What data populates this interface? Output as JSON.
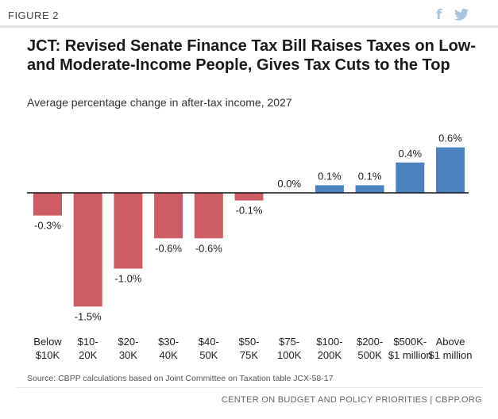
{
  "figure_label": "FIGURE 2",
  "share": {
    "facebook_glyph": "f",
    "twitter_glyph": "🐦"
  },
  "title": "JCT: Revised Senate Finance Tax Bill Raises Taxes on Low- and Moderate-Income People, Gives Tax Cuts to the Top",
  "subtitle": "Average percentage change in after-tax income, 2027",
  "source": "Source: CBPP calculations based on Joint Committee on Taxation table JCX-58-17",
  "footer": "CENTER ON BUDGET AND POLICY PRIORITIES | CBPP.ORG",
  "colors": {
    "negative": "#cd5c64",
    "positive": "#4a83bf",
    "zero_line": "#111111"
  },
  "chart_data": {
    "type": "bar",
    "title": "JCT: Revised Senate Finance Tax Bill Raises Taxes on Low- and Moderate-Income People, Gives Tax Cuts to the Top",
    "subtitle": "Average percentage change in after-tax income, 2027",
    "categories": [
      [
        "Below",
        "$10K"
      ],
      [
        "$10-",
        "20K"
      ],
      [
        "$20-",
        "30K"
      ],
      [
        "$30-",
        "40K"
      ],
      [
        "$40-",
        "50K"
      ],
      [
        "$50-",
        "75K"
      ],
      [
        "$75-",
        "100K"
      ],
      [
        "$100-",
        "200K"
      ],
      [
        "$200-",
        "500K"
      ],
      [
        "$500K-",
        "$1 million"
      ],
      [
        "Above",
        "$1 million"
      ]
    ],
    "values": [
      -0.3,
      -1.5,
      -1.0,
      -0.6,
      -0.6,
      -0.1,
      0.0,
      0.1,
      0.1,
      0.4,
      0.6
    ],
    "data_labels": [
      "-0.3%",
      "-1.5%",
      "-1.0%",
      "-0.6%",
      "-0.6%",
      "-0.1%",
      "0.0%",
      "0.1%",
      "0.1%",
      "0.4%",
      "0.6%"
    ],
    "ylim": [
      -1.5,
      0.6
    ],
    "grid": false,
    "legend": "none"
  }
}
